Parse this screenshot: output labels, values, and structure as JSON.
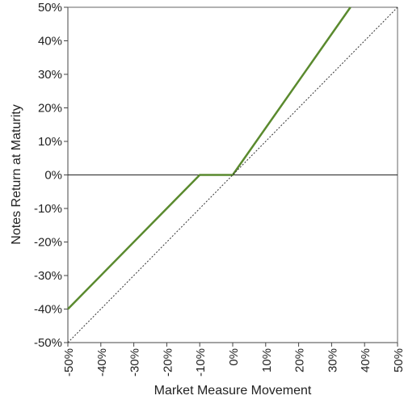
{
  "chart_data": {
    "type": "line",
    "xlabel": "Market Measure Movement",
    "ylabel": "Notes Return at Maturity",
    "xlim": [
      -50,
      50
    ],
    "ylim": [
      -50,
      50
    ],
    "x_ticks": [
      "-50%",
      "-40%",
      "-30%",
      "-20%",
      "-10%",
      "0%",
      "10%",
      "20%",
      "30%",
      "40%",
      "50%"
    ],
    "y_ticks": [
      "50%",
      "40%",
      "30%",
      "20%",
      "10%",
      "0%",
      "-10%",
      "-20%",
      "-30%",
      "-40%",
      "-50%"
    ],
    "series": [
      {
        "style": "solid",
        "color": "#5a8a2e",
        "x": [
          -50,
          -10,
          0,
          35.7
        ],
        "y": [
          -40,
          0,
          0,
          50
        ]
      },
      {
        "style": "dotted",
        "color": "#333333",
        "x": [
          -50,
          50
        ],
        "y": [
          -50,
          50
        ]
      }
    ]
  }
}
